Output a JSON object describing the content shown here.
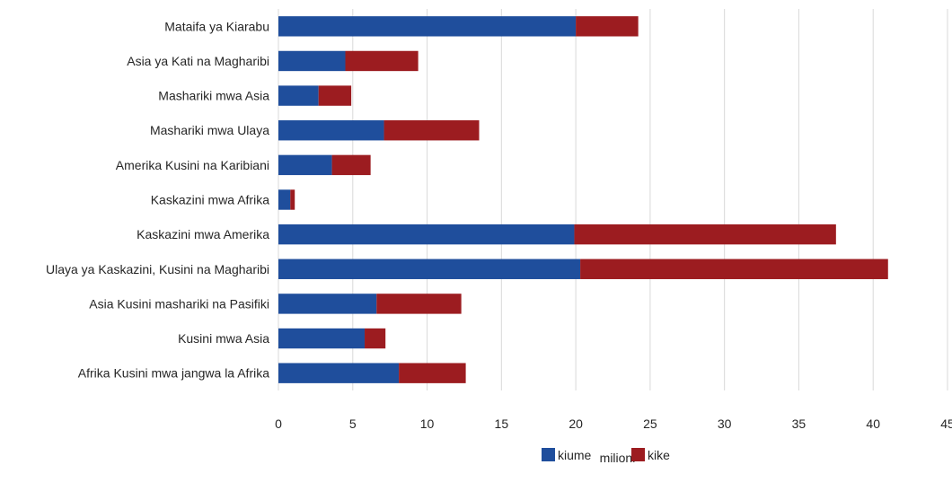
{
  "chart_data": {
    "type": "bar",
    "orientation": "horizontal",
    "stacked": true,
    "categories": [
      "Mataifa ya Kiarabu",
      "Asia ya Kati na Magharibi",
      "Mashariki mwa Asia",
      "Mashariki mwa Ulaya",
      "Amerika Kusini na Karibiani",
      "Kaskazini mwa Afrika",
      "Kaskazini mwa Amerika",
      "Ulaya ya Kaskazini, Kusini na Magharibi",
      "Asia Kusini mashariki na Pasifiki",
      "Kusini mwa Asia",
      "Afrika Kusini mwa jangwa la Afrika"
    ],
    "series": [
      {
        "name": "kiume",
        "color": "#1f4e9c",
        "values": [
          20.0,
          4.5,
          2.7,
          7.1,
          3.6,
          0.8,
          19.9,
          20.3,
          6.6,
          5.8,
          8.1
        ]
      },
      {
        "name": "kike",
        "color": "#9c1c20",
        "values": [
          4.2,
          4.9,
          2.2,
          6.4,
          2.6,
          0.3,
          17.6,
          20.7,
          5.7,
          1.4,
          4.5
        ]
      }
    ],
    "xlabel": "milioni",
    "xlim": [
      0,
      45
    ],
    "xticks": [
      0,
      5,
      10,
      15,
      20,
      25,
      30,
      35,
      40,
      45
    ],
    "grid": "vertical",
    "legend": "bottom"
  }
}
